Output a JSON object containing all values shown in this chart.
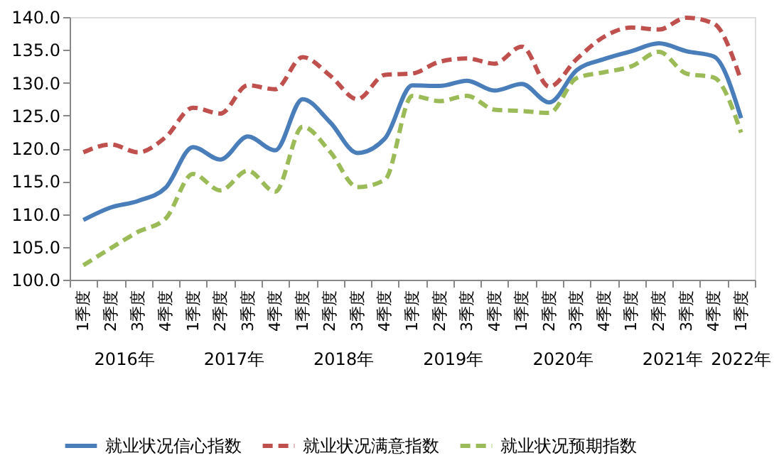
{
  "chart_data": {
    "type": "line",
    "categories": [
      "1季度",
      "2季度",
      "3季度",
      "4季度",
      "1季度",
      "2季度",
      "3季度",
      "4季度",
      "1季度",
      "2季度",
      "3季度",
      "4季度",
      "1季度",
      "2季度",
      "3季度",
      "4季度",
      "1季度",
      "2季度",
      "3季度",
      "4季度",
      "1季度",
      "2季度",
      "3季度",
      "4季度",
      "1季度"
    ],
    "annotations": [
      "2016年",
      "2017年",
      "2018年",
      "2019年",
      "2020年",
      "2021年",
      "2022年"
    ],
    "series": [
      {
        "name": "就业状况信心指数",
        "color": "#4a7ebb",
        "line_style": "solid",
        "values": [
          109.1,
          111.0,
          112.0,
          114.0,
          120.2,
          118.3,
          121.8,
          119.7,
          127.5,
          124.0,
          119.3,
          121.5,
          129.6,
          129.5,
          130.3,
          128.8,
          129.8,
          127.0,
          131.9,
          133.6,
          134.8,
          136.0,
          134.8,
          134.0,
          124.6
        ]
      },
      {
        "name": "就业状况满意指数",
        "color": "#c0504d",
        "line_style": "dashed",
        "values": [
          119.4,
          120.6,
          119.4,
          121.7,
          126.2,
          125.3,
          129.6,
          129.0,
          133.9,
          131.1,
          127.5,
          131.2,
          131.4,
          133.2,
          133.7,
          132.9,
          135.5,
          129.4,
          133.6,
          137.0,
          138.4,
          138.1,
          139.9,
          139.0,
          130.3
        ]
      },
      {
        "name": "就业状况预期指数",
        "color": "#9bbb59",
        "line_style": "dashed",
        "values": [
          102.2,
          104.8,
          107.3,
          109.3,
          116.1,
          113.6,
          116.6,
          113.4,
          123.3,
          119.5,
          114.1,
          115.2,
          128.0,
          127.2,
          128.0,
          125.9,
          125.7,
          125.4,
          130.7,
          131.6,
          132.5,
          134.7,
          131.4,
          130.8,
          122.4
        ]
      }
    ],
    "ylim": [
      100,
      140
    ],
    "yticks": [
      {
        "value": 100,
        "label": "100.0"
      },
      {
        "value": 105,
        "label": "105.0"
      },
      {
        "value": 110,
        "label": "110.0"
      },
      {
        "value": 115,
        "label": "115.0"
      },
      {
        "value": 120,
        "label": "120.0"
      },
      {
        "value": 125,
        "label": "125.0"
      },
      {
        "value": 130,
        "label": "130.0"
      },
      {
        "value": 135,
        "label": "135.0"
      },
      {
        "value": 140,
        "label": "140.0"
      }
    ],
    "grid": false,
    "legend": "bottom",
    "marker": "none"
  }
}
